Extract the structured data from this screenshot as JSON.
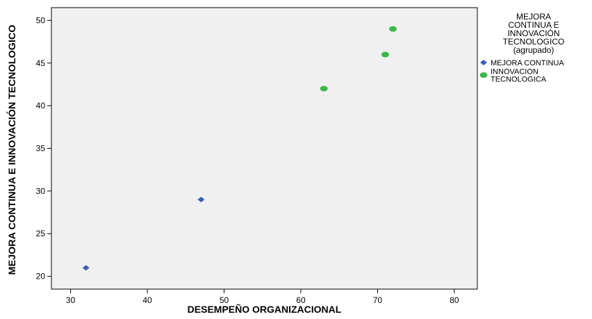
{
  "chart_data": {
    "type": "scatter",
    "xlabel": "DESEMPEÑO ORGANIZACIONAL",
    "ylabel": "MEJORA CONTINUA E INNOVACIÓN TECNOLOGICO",
    "xlim": [
      27.5,
      83
    ],
    "ylim": [
      18.5,
      51.5
    ],
    "xticks": [
      "30",
      "40",
      "50",
      "60",
      "70",
      "80"
    ],
    "yticks": [
      "20",
      "25",
      "30",
      "35",
      "40",
      "45",
      "50"
    ],
    "grid": false,
    "background_color": "#f0f0f0",
    "legend_position": "right",
    "legend_title": [
      "MEJORA",
      "CONTINUA E",
      "INNOVACIÓN",
      "TECNOLOGICO",
      "(agrupado)"
    ],
    "series": [
      {
        "name": "MEJORA CONTINUA",
        "legend_lines": [
          "MEJORA CONTINUA"
        ],
        "marker": "diamond",
        "color": "#3d5fb4",
        "x": [
          32,
          47
        ],
        "y": [
          21,
          29
        ]
      },
      {
        "name": "INNOVACION TECNOLOGICA",
        "legend_lines": [
          "INNOVACION",
          "TECNOLOGICA"
        ],
        "marker": "circle",
        "color": "#3cb64a",
        "x": [
          63,
          71,
          72
        ],
        "y": [
          42,
          46,
          49
        ]
      }
    ]
  }
}
